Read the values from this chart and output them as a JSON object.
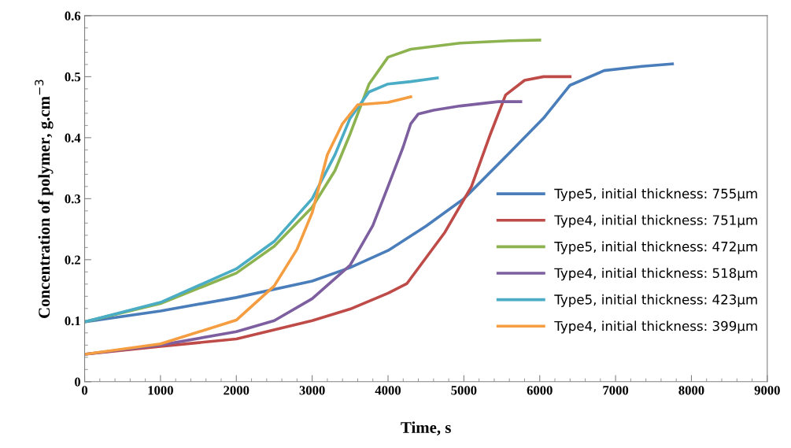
{
  "chart_data": {
    "type": "line",
    "xlabel": "Time, s",
    "ylabel": "Concentration of polymer, g.cm$^{−3}$",
    "xlim": [
      0,
      9000
    ],
    "xticks": [
      0,
      1000,
      2000,
      3000,
      4000,
      5000,
      6000,
      7000,
      8000,
      9000
    ],
    "ylim": [
      0,
      0.6
    ],
    "yticks": [
      0,
      0.1,
      0.2,
      0.3,
      0.4,
      0.5,
      0.6
    ],
    "grid": false,
    "legend": "right",
    "marker": "none",
    "line_style": "solid",
    "series": [
      {
        "name": "Type5, initial thickness: 755μm",
        "color": "#4a7ebb",
        "x": [
          0,
          1000,
          2000,
          3000,
          3500,
          4000,
          4250,
          4500,
          5000,
          5600,
          6050,
          6400,
          6850,
          7350,
          7750
        ],
        "values": [
          0.098,
          0.116,
          0.138,
          0.165,
          0.187,
          0.215,
          0.235,
          0.255,
          0.3,
          0.375,
          0.432,
          0.486,
          0.51,
          0.517,
          0.521
        ]
      },
      {
        "name": "Type4, initial thickness: 751μm",
        "color": "#be4b48",
        "x": [
          0,
          1000,
          2000,
          3000,
          3500,
          4000,
          4250,
          4750,
          5100,
          5350,
          5550,
          5800,
          6050,
          6400
        ],
        "values": [
          0.045,
          0.058,
          0.07,
          0.1,
          0.119,
          0.145,
          0.161,
          0.245,
          0.32,
          0.406,
          0.47,
          0.494,
          0.5,
          0.5
        ]
      },
      {
        "name": "Type5, initial thickness: 472μm",
        "color": "#8cb34f",
        "x": [
          0,
          1000,
          2000,
          2500,
          3000,
          3300,
          3500,
          3750,
          4000,
          4300,
          4950,
          5600,
          6000
        ],
        "values": [
          0.098,
          0.128,
          0.178,
          0.222,
          0.286,
          0.346,
          0.406,
          0.488,
          0.532,
          0.545,
          0.555,
          0.559,
          0.56
        ]
      },
      {
        "name": "Type4, initial thickness: 518μm",
        "color": "#7d5fa0",
        "x": [
          0,
          1000,
          2000,
          2500,
          3000,
          3500,
          3800,
          4000,
          4200,
          4300,
          4400,
          4600,
          4950,
          5450,
          5750
        ],
        "values": [
          0.045,
          0.06,
          0.082,
          0.1,
          0.136,
          0.191,
          0.256,
          0.32,
          0.385,
          0.423,
          0.439,
          0.445,
          0.452,
          0.459,
          0.459
        ]
      },
      {
        "name": "Type5, initial thickness: 423μm",
        "color": "#4aacc5",
        "x": [
          0,
          1000,
          2000,
          2500,
          3000,
          3300,
          3500,
          3750,
          4000,
          4300,
          4650
        ],
        "values": [
          0.098,
          0.13,
          0.185,
          0.23,
          0.3,
          0.372,
          0.432,
          0.475,
          0.488,
          0.492,
          0.498
        ]
      },
      {
        "name": "Type4, initial thickness: 399μm",
        "color": "#f59d41",
        "x": [
          0,
          1000,
          2000,
          2500,
          2800,
          3000,
          3200,
          3400,
          3600,
          4000,
          4300
        ],
        "values": [
          0.045,
          0.062,
          0.101,
          0.157,
          0.217,
          0.277,
          0.372,
          0.423,
          0.454,
          0.458,
          0.467
        ]
      }
    ]
  }
}
